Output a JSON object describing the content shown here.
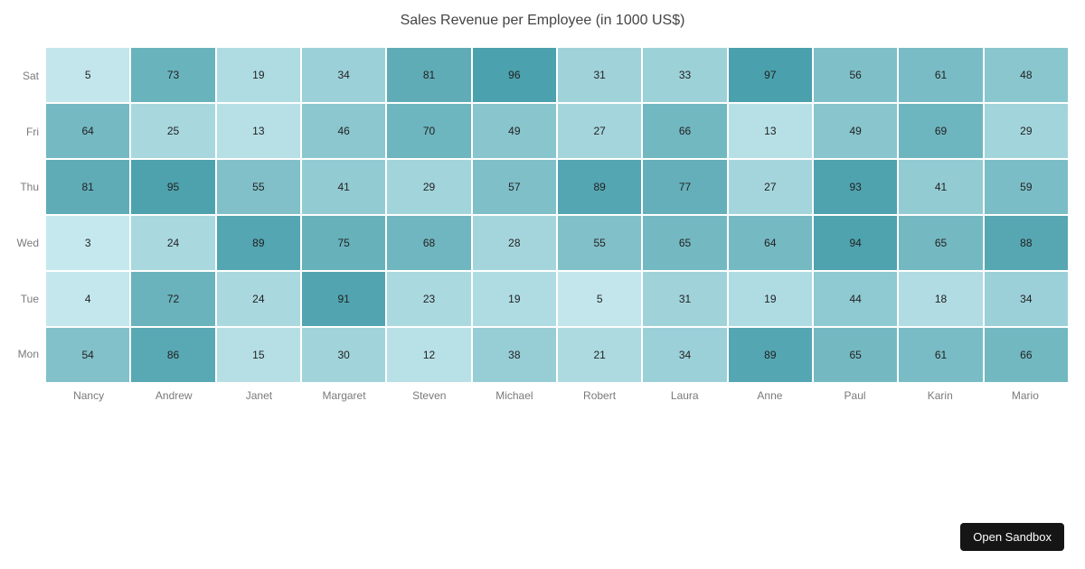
{
  "title": "Sales Revenue per Employee (in 1000 US$)",
  "sandbox_button": {
    "label": "Open Sandbox",
    "bg_color": "#151515",
    "text_color": "#ffffff"
  },
  "chart_data": {
    "type": "heatmap",
    "title": "Sales Revenue per Employee (in 1000 US$)",
    "x_categories": [
      "Nancy",
      "Andrew",
      "Janet",
      "Margaret",
      "Steven",
      "Michael",
      "Robert",
      "Laura",
      "Anne",
      "Paul",
      "Karin",
      "Mario"
    ],
    "y_categories_top_to_bottom": [
      "Sat",
      "Fri",
      "Thu",
      "Wed",
      "Tue",
      "Mon"
    ],
    "series": [
      {
        "name": "Sat",
        "values": [
          5,
          73,
          19,
          34,
          81,
          96,
          31,
          33,
          97,
          56,
          61,
          48
        ]
      },
      {
        "name": "Fri",
        "values": [
          64,
          25,
          13,
          46,
          70,
          49,
          27,
          66,
          13,
          49,
          69,
          29
        ]
      },
      {
        "name": "Thu",
        "values": [
          81,
          95,
          55,
          41,
          29,
          57,
          89,
          77,
          27,
          93,
          41,
          59
        ]
      },
      {
        "name": "Wed",
        "values": [
          3,
          24,
          89,
          75,
          68,
          28,
          55,
          65,
          64,
          94,
          65,
          88
        ]
      },
      {
        "name": "Tue",
        "values": [
          4,
          72,
          24,
          91,
          23,
          19,
          5,
          31,
          19,
          44,
          18,
          34
        ]
      },
      {
        "name": "Mon",
        "values": [
          54,
          86,
          15,
          30,
          12,
          38,
          21,
          34,
          89,
          65,
          61,
          66
        ]
      }
    ],
    "value_labels_shown": true,
    "color_scale": {
      "min_value": 0,
      "max_value": 100,
      "min_color": "#c8eaef",
      "max_color": "#469eaa"
    },
    "layout": {
      "legend": "none",
      "grid_on": false,
      "background": "#ffffff",
      "cell_gap_color": "#ffffff",
      "title_color": "#444444",
      "axis_label_color": "#7a7a7a",
      "cell_value_color": "#222222"
    }
  }
}
